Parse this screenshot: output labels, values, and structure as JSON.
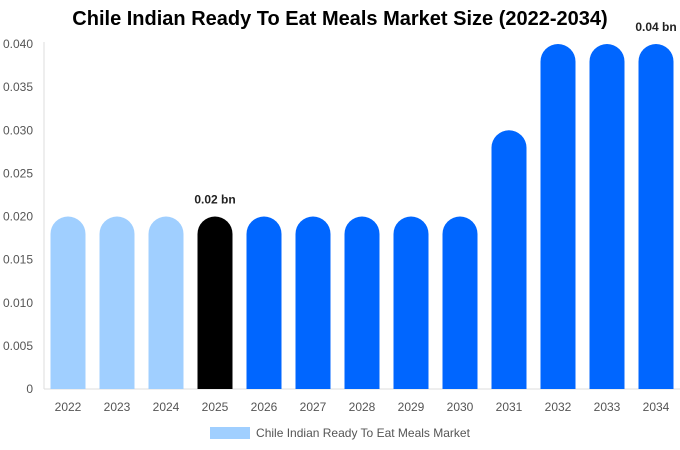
{
  "chart_data": {
    "type": "bar",
    "title": "Chile Indian Ready To Eat Meals Market Size (2022-2034)",
    "categories": [
      "2022",
      "2023",
      "2024",
      "2025",
      "2026",
      "2027",
      "2028",
      "2029",
      "2030",
      "2031",
      "2032",
      "2033",
      "2034"
    ],
    "series": [
      {
        "name": "Chile Indian Ready To Eat Meals Market",
        "values": [
          0.02,
          0.02,
          0.02,
          0.02,
          0.02,
          0.02,
          0.02,
          0.02,
          0.02,
          0.03,
          0.04,
          0.04,
          0.04
        ]
      }
    ],
    "ylim": [
      0,
      0.04
    ],
    "yticks": [
      "0",
      "0.005",
      "0.010",
      "0.015",
      "0.020",
      "0.025",
      "0.030",
      "0.035",
      "0.040"
    ],
    "data_labels": [
      {
        "category": "2025",
        "text": "0.02 bn"
      },
      {
        "category": "2034",
        "text": "0.04 bn"
      }
    ],
    "colors": {
      "historical": "#a0cfff",
      "current": "#000000",
      "forecast": "#0066ff"
    },
    "grid": false,
    "legend_position": "bottom"
  }
}
